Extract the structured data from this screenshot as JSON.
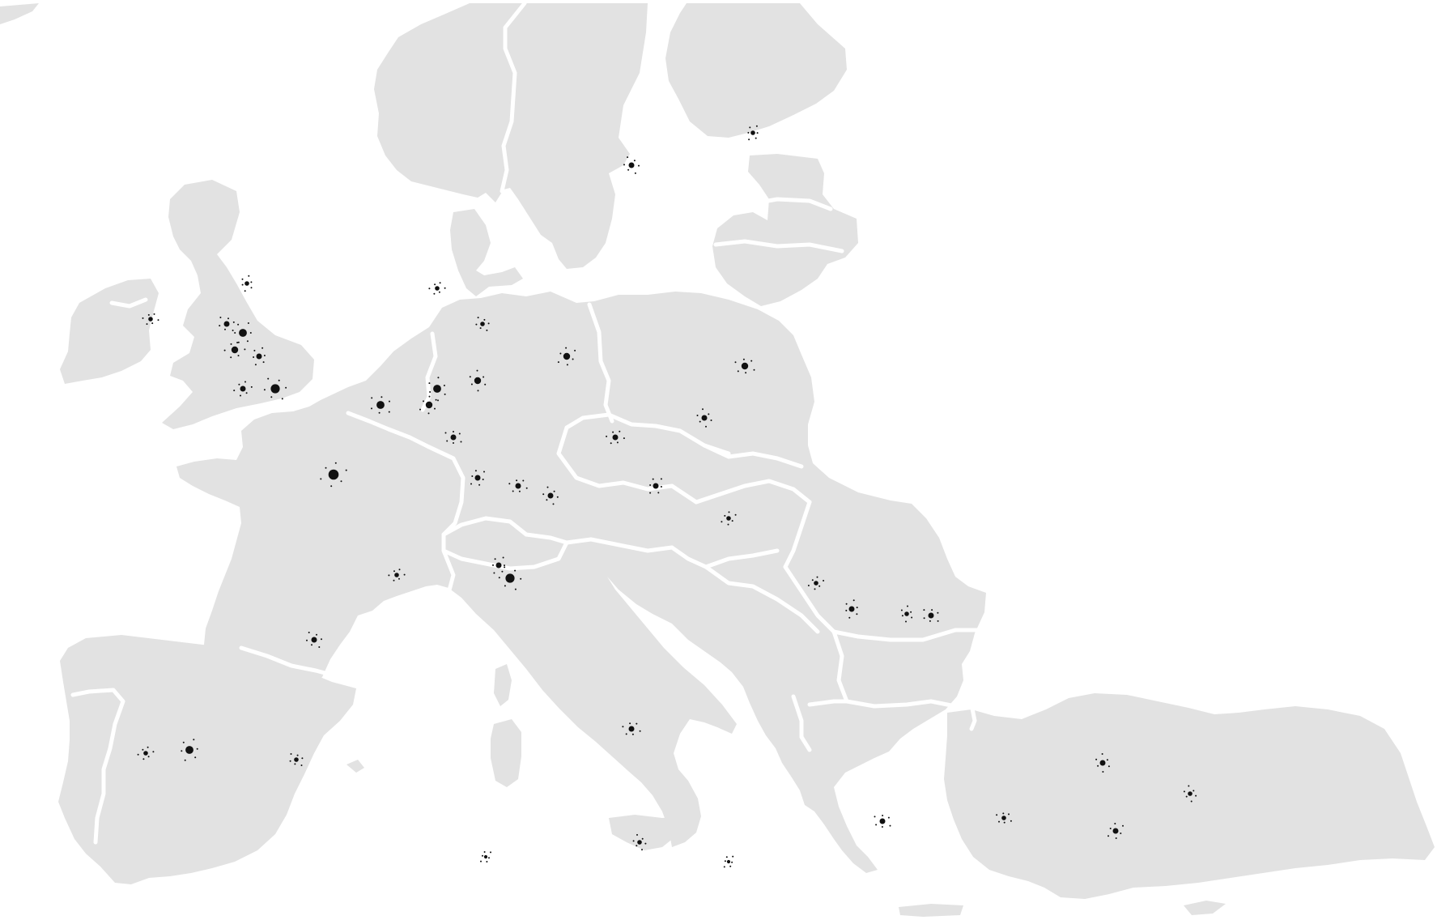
{
  "map": {
    "background_color": "#ffffff",
    "land_color": "#e2e2e2",
    "land_light_color": "#ececec",
    "border_color": "#ffffff",
    "city_color": "#111111"
  }
}
